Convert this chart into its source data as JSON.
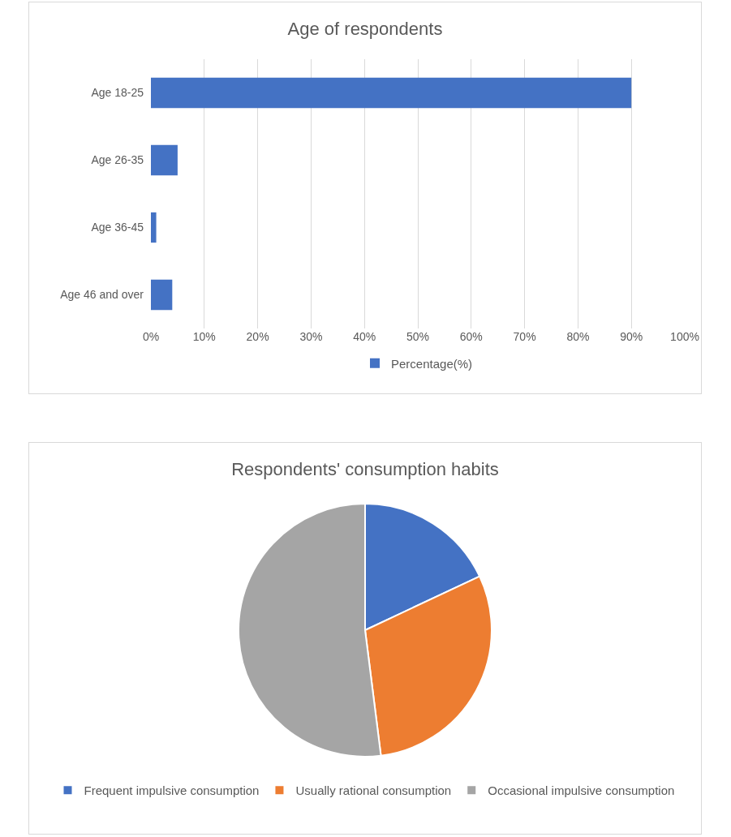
{
  "chart_data": [
    {
      "type": "bar",
      "title": "Age of respondents",
      "orientation": "horizontal",
      "categories": [
        "Age 18-25",
        "Age 26-35",
        "Age 36-45",
        "Age 46 and over"
      ],
      "series": [
        {
          "name": "Percentage(%)",
          "color": "#4472c4",
          "values": [
            90,
            5,
            1,
            4
          ]
        }
      ],
      "xlim": [
        0,
        100
      ],
      "xticks": [
        {
          "value": 0,
          "label": "0%"
        },
        {
          "value": 10,
          "label": "10%"
        },
        {
          "value": 20,
          "label": "20%"
        },
        {
          "value": 30,
          "label": "30%"
        },
        {
          "value": 40,
          "label": "40%"
        },
        {
          "value": 50,
          "label": "50%"
        },
        {
          "value": 60,
          "label": "60%"
        },
        {
          "value": 70,
          "label": "70%"
        },
        {
          "value": 80,
          "label": "80%"
        },
        {
          "value": 90,
          "label": "90%"
        },
        {
          "value": 100,
          "label": "100%"
        }
      ],
      "grid": "x",
      "legend": "bottom"
    },
    {
      "type": "pie",
      "title": "Respondents' consumption habits",
      "categories": [
        "Frequent impulsive consumption",
        "Usually rational consumption",
        "Occasional impulsive consumption"
      ],
      "values": [
        18,
        30,
        52
      ],
      "colors": [
        "#4472c4",
        "#ed7d31",
        "#a5a5a5"
      ],
      "legend": "bottom"
    }
  ]
}
